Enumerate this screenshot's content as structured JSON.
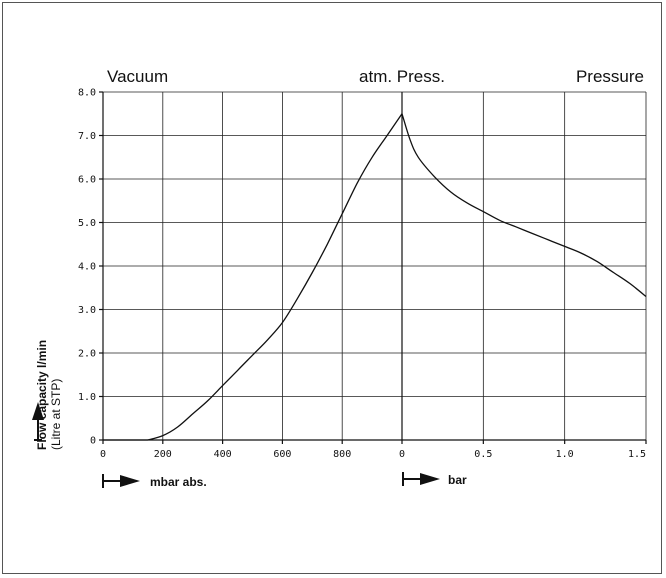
{
  "chart_data": {
    "type": "line",
    "ylabel": "Flow capacity l/min",
    "ylabel_sub": "(Litre at STP)",
    "ylim": [
      0,
      8
    ],
    "yticks": [
      "8.0",
      "7.0",
      "6.0",
      "5.0",
      "4.0",
      "3.0",
      "2.0",
      "1.0",
      "0"
    ],
    "grid": true,
    "regions": {
      "vacuum": "Vacuum",
      "atm": "atm. Press.",
      "pressure": "Pressure"
    },
    "vacuum_axis": {
      "label": "mbar abs.",
      "range": [
        0,
        1000
      ],
      "ticks": [
        "0",
        "200",
        "400",
        "600",
        "800"
      ]
    },
    "pressure_axis": {
      "label": "bar",
      "range": [
        0,
        1.5
      ],
      "ticks": [
        "0",
        "0.5",
        "1.0",
        "1.5"
      ]
    },
    "series": [
      {
        "segment": "vacuum",
        "x": [
          150,
          200,
          250,
          300,
          350,
          400,
          450,
          500,
          550,
          600,
          650,
          700,
          750,
          800,
          850,
          900,
          950,
          1000
        ],
        "y": [
          0,
          0.1,
          0.3,
          0.6,
          0.9,
          1.25,
          1.6,
          1.95,
          2.3,
          2.7,
          3.25,
          3.85,
          4.5,
          5.2,
          5.9,
          6.5,
          7.0,
          7.5
        ]
      },
      {
        "segment": "pressure",
        "x": [
          0,
          0.05,
          0.1,
          0.2,
          0.3,
          0.4,
          0.5,
          0.6,
          0.7,
          0.8,
          0.9,
          1.0,
          1.1,
          1.2,
          1.3,
          1.4,
          1.5
        ],
        "y": [
          7.5,
          6.9,
          6.5,
          6.05,
          5.7,
          5.45,
          5.25,
          5.05,
          4.9,
          4.75,
          4.6,
          4.45,
          4.3,
          4.1,
          3.85,
          3.6,
          3.3
        ]
      }
    ]
  }
}
